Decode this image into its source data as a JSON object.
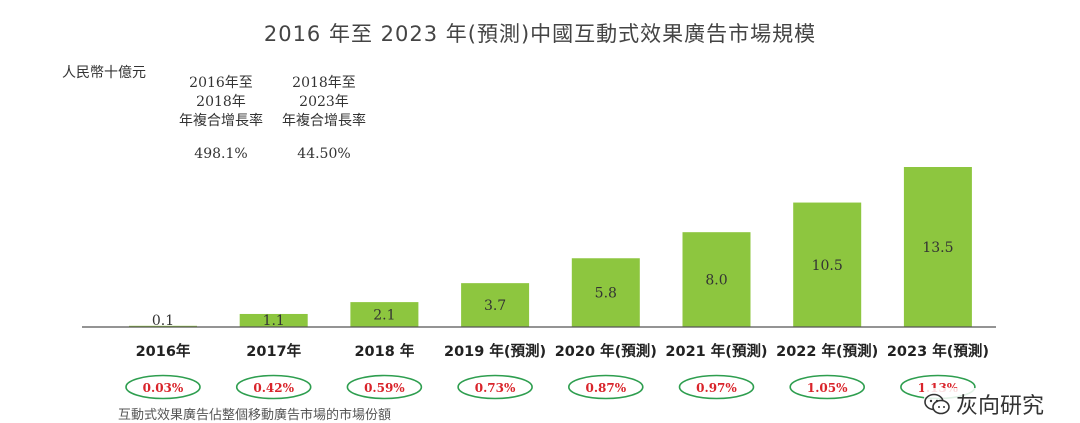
{
  "chart_data": {
    "type": "bar",
    "title": "2016 年至 2023 年(預測)中國互動式效果廣告市場規模",
    "ylabel": "人民幣十億元",
    "categories": [
      "2016年",
      "2017年",
      "2018 年",
      "2019 年(預測)",
      "2020 年(預測)",
      "2021 年(預測)",
      "2022 年(預測)",
      "2023 年(預測)"
    ],
    "values": [
      0.1,
      1.1,
      2.1,
      3.7,
      5.8,
      8.0,
      10.5,
      13.5
    ],
    "value_labels": [
      "0.1",
      "1.1",
      "2.1",
      "3.7",
      "5.8",
      "8.0",
      "10.5",
      "13.5"
    ],
    "shares": [
      "0.03%",
      "0.42%",
      "0.59%",
      "0.73%",
      "0.87%",
      "0.97%",
      "1.05%",
      "1.13%"
    ],
    "ylim": [
      0,
      14
    ],
    "grid": false,
    "colors": {
      "bar": "#8dc63f",
      "share_border": "#2e9e4f",
      "share_text": "#d9242b",
      "axis": "#555555"
    }
  },
  "cagr": [
    {
      "period_line1": "2016年至",
      "period_line2": "2018年",
      "label": "年複合增長率",
      "value": "498.1%"
    },
    {
      "period_line1": "2018年至",
      "period_line2": "2023年",
      "label": "年複合增長率",
      "value": "44.50%"
    }
  ],
  "footnote": "互動式效果廣告佔整個移動廣告市場的市場份額",
  "watermark": "灰向研究"
}
